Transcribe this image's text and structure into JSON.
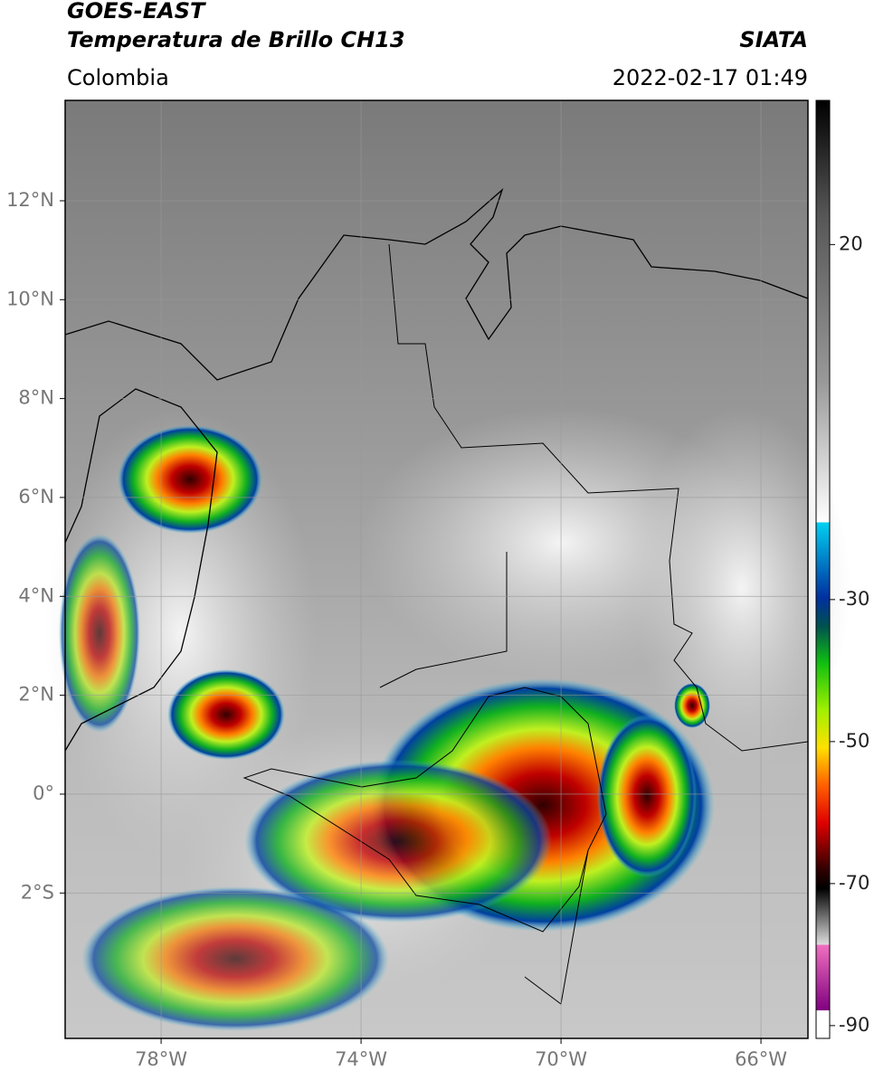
{
  "header": {
    "title_line1": "GOES-EAST",
    "title_line2": "Temperatura de Brillo CH13",
    "source": "SIATA",
    "region": "Colombia",
    "timestamp": "2022-02-17 01:49"
  },
  "map": {
    "xlim": [
      -79.92,
      -65.06
    ],
    "ylim": [
      -4.94,
      14.03
    ],
    "xticks": [
      {
        "value": -78,
        "label": "78°W"
      },
      {
        "value": -74,
        "label": "74°W"
      },
      {
        "value": -70,
        "label": "70°W"
      },
      {
        "value": -66,
        "label": "66°W"
      }
    ],
    "yticks": [
      {
        "value": 12,
        "label": "12°N"
      },
      {
        "value": 10,
        "label": "10°N"
      },
      {
        "value": 8,
        "label": "8°N"
      },
      {
        "value": 6,
        "label": "6°N"
      },
      {
        "value": 4,
        "label": "4°N"
      },
      {
        "value": 2,
        "label": "2°N"
      },
      {
        "value": 0,
        "label": "0°"
      },
      {
        "value": -2,
        "label": "2°S"
      }
    ]
  },
  "colorbar": {
    "lim": [
      -91.8,
      40.3
    ],
    "ticks": [
      20,
      -30,
      -50,
      -70,
      -90
    ]
  }
}
